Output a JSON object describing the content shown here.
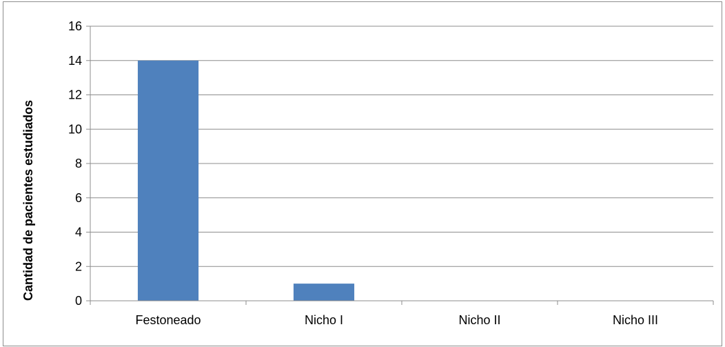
{
  "chart_data": {
    "type": "bar",
    "categories": [
      "Festoneado",
      "Nicho I",
      "Nicho II",
      "Nicho III"
    ],
    "values": [
      14,
      1,
      0,
      0
    ],
    "ylabel": "Cantidad de pacientes estudiados",
    "xlabel": "",
    "ylim": [
      0,
      16
    ],
    "yticks": [
      0,
      2,
      4,
      6,
      8,
      10,
      12,
      14,
      16
    ],
    "grid": true,
    "legend": "none",
    "bar_color": "#4f81bd"
  }
}
